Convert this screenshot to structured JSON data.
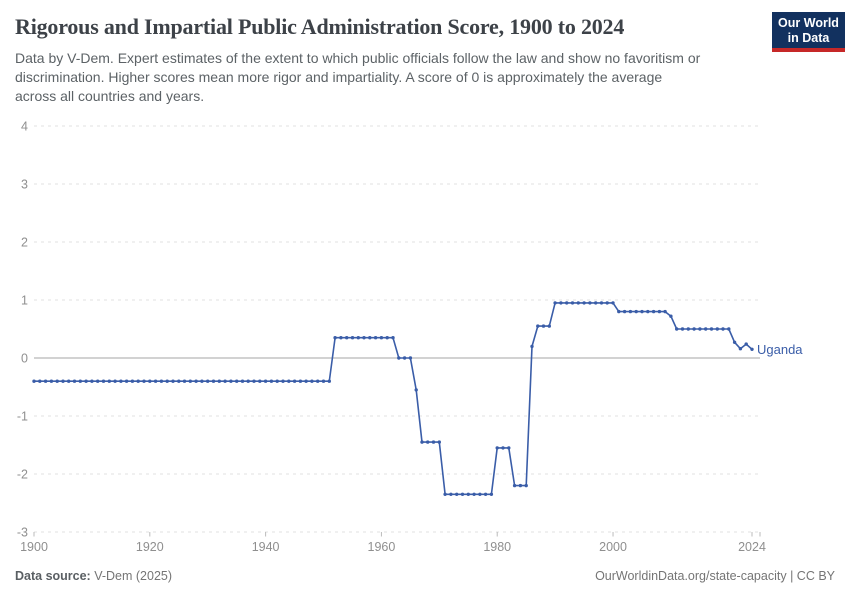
{
  "header": {
    "title": "Rigorous and Impartial Public Administration Score, 1900 to 2024",
    "subtitle_lines": [
      "Data by V-Dem. Expert estimates of the extent to which public officials follow the law and show no favoritism or",
      "discrimination. Higher scores mean more rigor and impartiality. A score of 0 is approximately the average",
      "across all countries and years."
    ],
    "logo": {
      "line1": "Our World",
      "line2": "in Data",
      "bg_color": "#12315f",
      "accent_color": "#c62828"
    }
  },
  "footer": {
    "source_label": "Data source:",
    "source_value": " V-Dem (2025)",
    "link": "OurWorldinData.org/state-capacity",
    "separator": " | ",
    "license": "CC BY"
  },
  "chart_data": {
    "type": "line",
    "title": "Rigorous and Impartial Public Administration Score, 1900 to 2024",
    "entity": "Uganda",
    "xlabel": "",
    "ylabel": "",
    "xlim": [
      1900,
      2024
    ],
    "ylim": [
      -3,
      4
    ],
    "grid": true,
    "legend_position": "end-of-line-label",
    "y_ticks": [
      4,
      3,
      2,
      1,
      0,
      -1,
      -2,
      -3
    ],
    "x_ticks": [
      1900,
      1920,
      1940,
      1960,
      1980,
      2000,
      2024
    ],
    "colors": {
      "line": "#3a5da8",
      "grid": "#e0e0e0",
      "zero_line": "#a5a5a5",
      "axis_text": "#8f8f8f"
    },
    "series": [
      {
        "name": "Uganda",
        "segments": [
          {
            "from": 1900,
            "to": 1951,
            "value": -0.4
          },
          {
            "from": 1952,
            "to": 1962,
            "value": 0.35
          },
          {
            "from": 1963,
            "to": 1965,
            "value": 0.0
          },
          {
            "from": 1966,
            "to": 1966,
            "value": -0.55
          },
          {
            "from": 1967,
            "to": 1970,
            "value": -1.45
          },
          {
            "from": 1971,
            "to": 1979,
            "value": -2.35
          },
          {
            "from": 1980,
            "to": 1982,
            "value": -1.55
          },
          {
            "from": 1983,
            "to": 1985,
            "value": -2.2
          },
          {
            "from": 1986,
            "to": 1986,
            "value": 0.2
          },
          {
            "from": 1987,
            "to": 1989,
            "value": 0.55
          },
          {
            "from": 1990,
            "to": 2000,
            "value": 0.95
          },
          {
            "from": 2001,
            "to": 2009,
            "value": 0.8
          },
          {
            "from": 2010,
            "to": 2010,
            "value": 0.72
          },
          {
            "from": 2011,
            "to": 2020,
            "value": 0.5
          },
          {
            "from": 2021,
            "to": 2021,
            "value": 0.27
          },
          {
            "from": 2022,
            "to": 2022,
            "value": 0.16
          },
          {
            "from": 2023,
            "to": 2023,
            "value": 0.24
          },
          {
            "from": 2024,
            "to": 2024,
            "value": 0.15
          }
        ]
      }
    ]
  }
}
